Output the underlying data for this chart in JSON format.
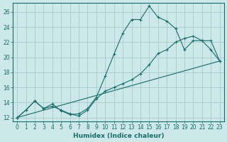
{
  "xlabel": "Humidex (Indice chaleur)",
  "bg_color": "#cce8e8",
  "grid_color": "#aacece",
  "line_color": "#1a6b6b",
  "xlim": [
    -0.5,
    23.5
  ],
  "ylim": [
    11.5,
    27.2
  ],
  "yticks": [
    12,
    14,
    16,
    18,
    20,
    22,
    24,
    26
  ],
  "xticks": [
    0,
    1,
    2,
    3,
    4,
    5,
    6,
    7,
    8,
    9,
    10,
    11,
    12,
    13,
    14,
    15,
    16,
    17,
    18,
    19,
    20,
    21,
    22,
    23
  ],
  "line1_x": [
    0,
    1,
    2,
    3,
    4,
    5,
    6,
    7,
    8,
    9,
    10,
    11,
    12,
    13,
    14,
    15,
    16,
    17,
    18,
    19,
    20,
    21,
    22,
    23
  ],
  "line1_y": [
    12.0,
    13.0,
    14.2,
    13.2,
    13.8,
    12.9,
    12.4,
    12.5,
    13.2,
    14.7,
    17.5,
    20.4,
    23.2,
    25.0,
    25.0,
    26.8,
    25.3,
    24.8,
    23.8,
    21.0,
    22.2,
    22.2,
    21.0,
    19.5
  ],
  "line2_x": [
    0,
    1,
    2,
    3,
    4,
    5,
    6,
    7,
    8,
    9,
    10,
    11,
    12,
    13,
    14,
    15,
    16,
    17,
    18,
    19,
    20,
    21,
    22,
    23
  ],
  "line2_y": [
    12.0,
    13.0,
    14.2,
    13.2,
    13.5,
    13.0,
    12.5,
    12.2,
    13.0,
    14.5,
    15.5,
    16.0,
    16.5,
    17.0,
    17.8,
    19.0,
    20.5,
    21.0,
    22.0,
    22.5,
    22.8,
    22.2,
    22.2,
    19.5
  ],
  "line3_x": [
    0,
    23
  ],
  "line3_y": [
    12.0,
    19.5
  ]
}
